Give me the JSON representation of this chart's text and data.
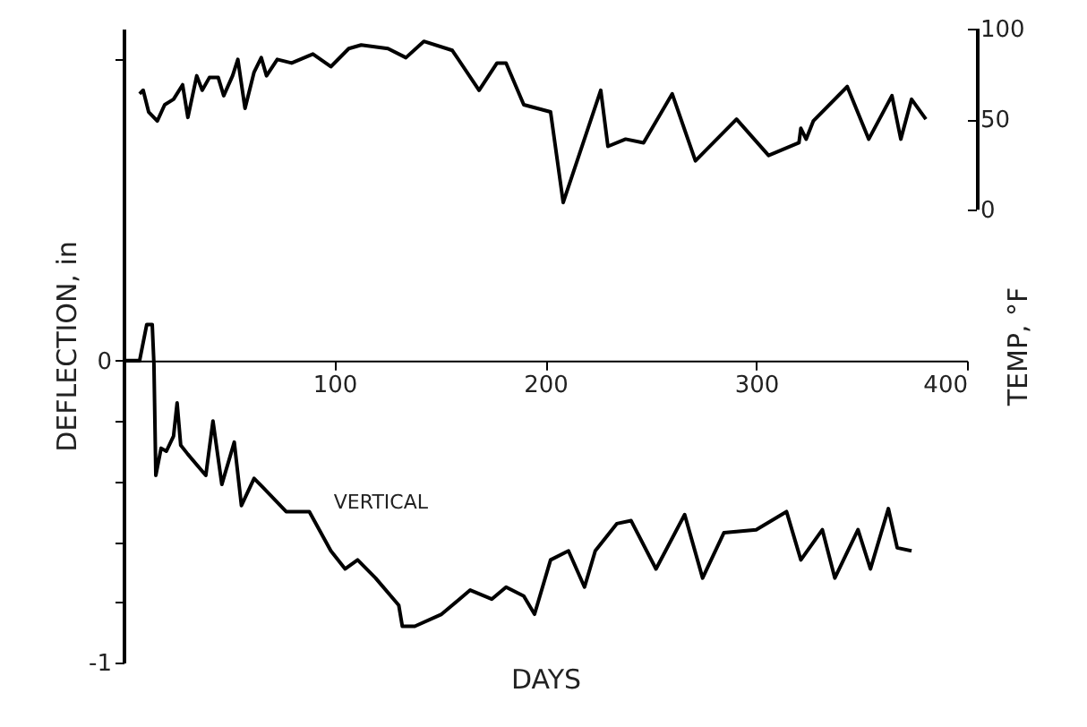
{
  "chart_data": {
    "type": "line",
    "xlabel": "DAYS",
    "ylabel": "DEFLECTION, in",
    "y2label": "TEMP, °F",
    "xlim": [
      0,
      400
    ],
    "xticks": [
      100,
      200,
      300,
      400
    ],
    "ylim": [
      -1,
      1.1
    ],
    "yticks": [
      {
        "value": 1,
        "label": null
      },
      0,
      {
        "value": -0.2,
        "label": null
      },
      {
        "value": -0.4,
        "label": null
      },
      {
        "value": -0.6,
        "label": null
      },
      {
        "value": -0.8,
        "label": null
      },
      -1
    ],
    "y2lim": [
      -250,
      100
    ],
    "y2ticks": [
      0,
      50,
      100
    ],
    "grid": false,
    "marker": "none",
    "line_style": "solid",
    "annotations": [
      {
        "text": "VERTICAL",
        "x": 81,
        "y": -0.52
      }
    ],
    "series": [
      {
        "color": "#000000",
        "axis": "y",
        "x": [
          0,
          7.6,
          11,
          13.6,
          14.4,
          15.3,
          17.8,
          20.3,
          23.7,
          25.4,
          27.1,
          30.5,
          39,
          42.4,
          46.6,
          52.5,
          55.9,
          61.9,
          66.1,
          77.1,
          88.1,
          98.3,
          105.1,
          111,
          119.5,
          130.5,
          132.2,
          138.1,
          150.8,
          164.4,
          174.6,
          181.4,
          189.8,
          194.9,
          202.5,
          211,
          218.6,
          223.7,
          233.9,
          240.7,
          252.5,
          266.1,
          274.6,
          284.7,
          300,
          314.4,
          321.2,
          331.4,
          337.3,
          348.3,
          354.2,
          362.7,
          366.9,
          373.7
        ],
        "values": [
          0,
          0,
          0.12,
          0.12,
          -0.01,
          -0.38,
          -0.29,
          -0.3,
          -0.25,
          -0.14,
          -0.28,
          -0.31,
          -0.38,
          -0.2,
          -0.41,
          -0.27,
          -0.48,
          -0.39,
          -0.42,
          -0.5,
          -0.5,
          -0.63,
          -0.69,
          -0.66,
          -0.72,
          -0.81,
          -0.88,
          -0.88,
          -0.84,
          -0.76,
          -0.79,
          -0.75,
          -0.78,
          -0.84,
          -0.66,
          -0.63,
          -0.75,
          -0.63,
          -0.54,
          -0.53,
          -0.69,
          -0.51,
          -0.72,
          -0.57,
          -0.56,
          -0.5,
          -0.66,
          -0.56,
          -0.72,
          -0.56,
          -0.69,
          -0.49,
          -0.62,
          -0.63
        ]
      },
      {
        "color": "#000000",
        "axis": "y2",
        "x": [
          7.6,
          9.3,
          11.9,
          16,
          19.5,
          23.7,
          28,
          30.5,
          34.7,
          37.3,
          40.7,
          44.9,
          47.5,
          51.7,
          54.2,
          57.6,
          61.9,
          65.3,
          67.8,
          72.9,
          79.7,
          89.8,
          98.3,
          106.8,
          112.7,
          125.4,
          133.9,
          142.4,
          155.9,
          168.6,
          177.1,
          181.4,
          189.8,
          202.5,
          208.5,
          226.3,
          229.7,
          238.1,
          246.6,
          260.2,
          271.2,
          290.7,
          305.9,
          320.3,
          321.2,
          323.7,
          327.1,
          343.2,
          353.4,
          364.4,
          368.6,
          373.7,
          380.5
        ],
        "values": [
          64,
          66,
          54,
          49,
          58,
          61,
          69,
          51,
          74,
          66,
          73,
          73,
          63,
          74,
          83,
          56,
          76,
          84,
          74,
          83,
          81,
          86,
          79,
          89,
          91,
          89,
          84,
          93,
          88,
          66,
          81,
          81,
          58,
          54,
          4,
          66,
          35,
          39,
          37,
          64,
          27,
          50,
          30,
          37,
          45,
          39,
          49,
          68,
          39,
          63,
          39,
          61,
          50
        ]
      }
    ]
  }
}
